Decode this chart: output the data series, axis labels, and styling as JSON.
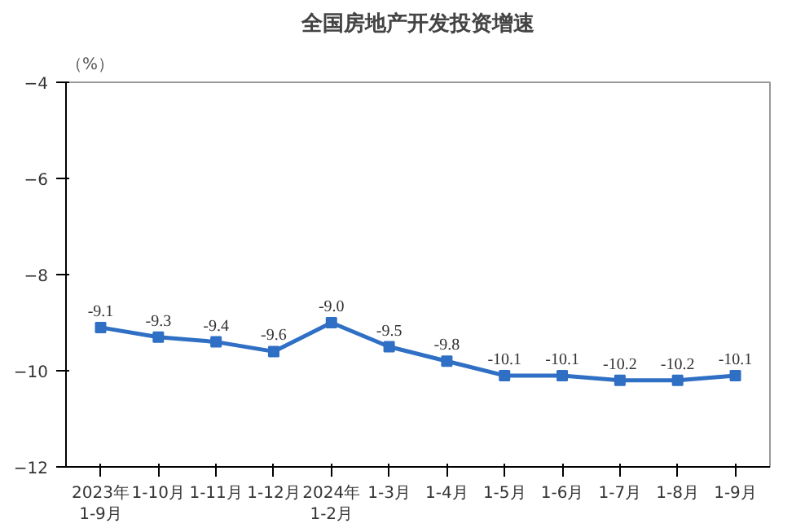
{
  "chart_data": {
    "type": "line",
    "title": "全国房地产开发投资增速",
    "ylabel": "（%）",
    "categories": [
      "2023年\n1-9月",
      "1-10月",
      "1-11月",
      "1-12月",
      "2024年\n1-2月",
      "1-3月",
      "1-4月",
      "1-5月",
      "1-6月",
      "1-7月",
      "1-8月",
      "1-9月"
    ],
    "series": [
      {
        "color": "#2f6fc4",
        "values": [
          -9.1,
          -9.3,
          -9.4,
          -9.6,
          -9.0,
          -9.5,
          -9.8,
          -10.1,
          -10.1,
          -10.2,
          -10.2,
          -10.1
        ],
        "value_labels": [
          "-9.1",
          "-9.3",
          "-9.4",
          "-9.6",
          "-9.0",
          "-9.5",
          "-9.8",
          "-10.1",
          "-10.1",
          "-10.2",
          "-10.2",
          "-10.1"
        ]
      }
    ],
    "ylim": [
      -12,
      -4
    ],
    "yticks": [
      -12,
      -10,
      -8,
      -6,
      -4
    ],
    "marker": "square",
    "line_style": "solid"
  }
}
